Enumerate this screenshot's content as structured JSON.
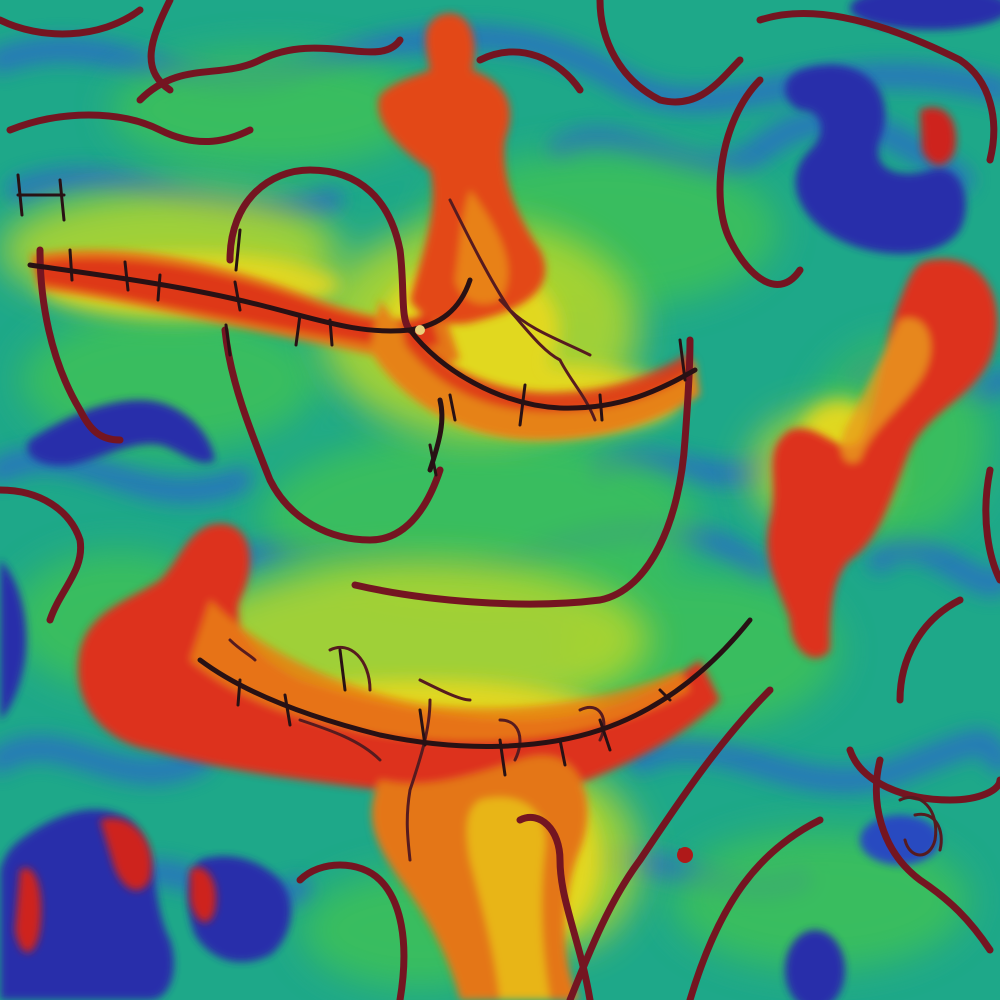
{
  "image": {
    "kind": "abstract heat-map style painting",
    "palette": {
      "background_teal": "#1fae8e",
      "green": "#3ec85a",
      "yellow_green": "#b6e02a",
      "yellow": "#f5e21a",
      "orange": "#f58a12",
      "red": "#e8321a",
      "deep_blue": "#2a2fb0",
      "navy": "#1f3a9a",
      "line_dark_red": "#7a1420",
      "line_black": "#2a0f12"
    }
  }
}
